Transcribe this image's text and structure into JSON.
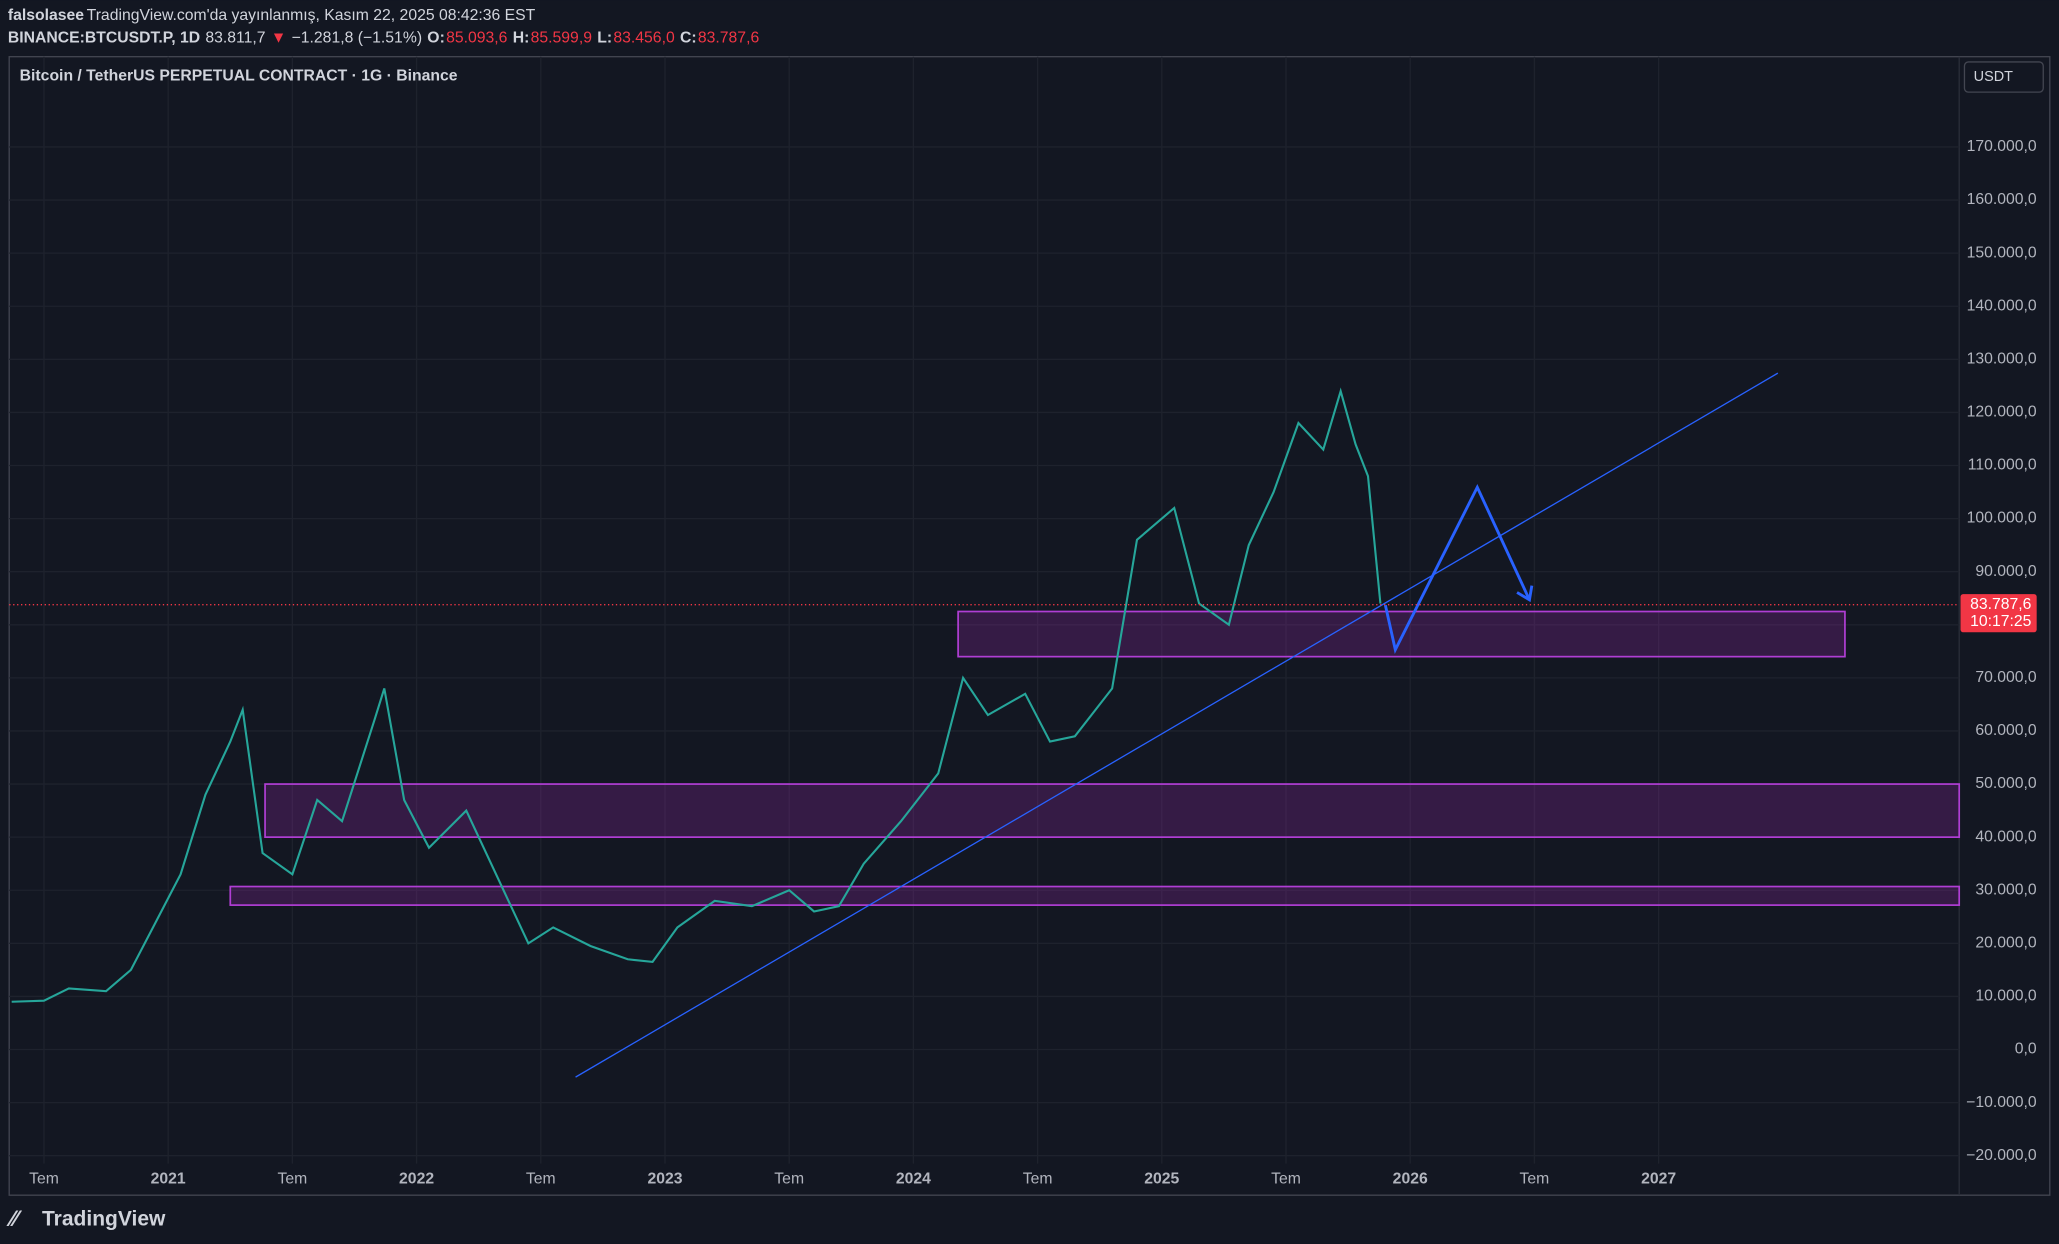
{
  "header": {
    "author": "falsolasee",
    "published": "TradingView.com'da yayınlanmış, Kasım 22, 2025 08:42:36 EST",
    "symbol": "BINANCE:BTCUSDT.P, 1D",
    "price": "83.811,7",
    "arrow": "▼",
    "change": "−1.281,8 (−1.51%)",
    "o_label": "O:",
    "o": "85.093,6",
    "h_label": "H:",
    "h": "85.599,9",
    "l_label": "L:",
    "l": "83.456,0",
    "c_label": "C:",
    "c": "83.787,6"
  },
  "legend": "Bitcoin / TetherUS PERPETUAL CONTRACT · 1G · Binance",
  "currency": "USDT",
  "brand": "TradingView",
  "chart_data": {
    "type": "line",
    "x": [
      2020.37,
      2020.5,
      2020.6,
      2020.75,
      2020.85,
      2020.95,
      2021.05,
      2021.15,
      2021.25,
      2021.3,
      2021.38,
      2021.5,
      2021.6,
      2021.7,
      2021.83,
      2021.87,
      2021.95,
      2022.05,
      2022.2,
      2022.35,
      2022.45,
      2022.55,
      2022.7,
      2022.85,
      2022.95,
      2023.05,
      2023.2,
      2023.35,
      2023.5,
      2023.6,
      2023.7,
      2023.8,
      2023.95,
      2024.1,
      2024.2,
      2024.3,
      2024.45,
      2024.55,
      2024.65,
      2024.8,
      2024.9,
      2024.95,
      2025.05,
      2025.15,
      2025.27,
      2025.35,
      2025.45,
      2025.55,
      2025.65,
      2025.72,
      2025.78,
      2025.83,
      2025.88
    ],
    "series": [
      {
        "name": "BTCUSDT.P",
        "color": "#26a69a",
        "values": [
          9000,
          9200,
          11500,
          11000,
          15000,
          24000,
          33000,
          48000,
          58000,
          64000,
          37000,
          33000,
          47000,
          43000,
          62000,
          68000,
          47000,
          38000,
          45000,
          30000,
          20000,
          23000,
          19500,
          17000,
          16500,
          23000,
          28000,
          27000,
          30000,
          26000,
          27000,
          35000,
          43000,
          52000,
          70000,
          63000,
          67000,
          58000,
          59000,
          68000,
          96000,
          98000,
          102000,
          84000,
          80000,
          95000,
          105000,
          118000,
          113000,
          124000,
          114000,
          108000,
          84000
        ]
      }
    ],
    "last_price": {
      "value": 83787.6,
      "label": "83.787,6"
    },
    "countdown": "10:17:25",
    "zones": [
      {
        "x": [
          2024.18,
          2027.75
        ],
        "y": [
          74000,
          82500
        ]
      },
      {
        "x": [
          2021.39,
          2028.21
        ],
        "y": [
          40000,
          50000
        ]
      },
      {
        "x": [
          2021.25,
          2028.21
        ],
        "y": [
          27200,
          30700
        ]
      }
    ],
    "trendline": {
      "x": [
        2022.64,
        2027.48
      ],
      "y": [
        -5200,
        127400
      ]
    },
    "projection": {
      "x": [
        2025.9,
        2025.94,
        2026.27,
        2026.48
      ],
      "y": [
        83700,
        75300,
        105900,
        84700
      ]
    },
    "xlim": [
      2020.36,
      2028.21
    ],
    "ylim": [
      -21500,
      187000
    ],
    "xticks": [
      {
        "value": 2020.5,
        "label": "Tem"
      },
      2021,
      {
        "value": 2021.5,
        "label": "Tem"
      },
      2022,
      {
        "value": 2022.5,
        "label": "Tem"
      },
      2023,
      {
        "value": 2023.5,
        "label": "Tem"
      },
      2024,
      {
        "value": 2024.5,
        "label": "Tem"
      },
      2025,
      {
        "value": 2025.5,
        "label": "Tem"
      },
      2026,
      {
        "value": 2026.5,
        "label": "Tem"
      },
      2027
    ],
    "yticks": [
      {
        "value": -20000,
        "label": "−20.000,0"
      },
      {
        "value": -10000,
        "label": "−10.000,0"
      },
      {
        "value": 0,
        "label": "0,0"
      },
      {
        "value": 10000,
        "label": "10.000,0"
      },
      {
        "value": 20000,
        "label": "20.000,0"
      },
      {
        "value": 30000,
        "label": "30.000,0"
      },
      {
        "value": 40000,
        "label": "40.000,0"
      },
      {
        "value": 50000,
        "label": "50.000,0"
      },
      {
        "value": 60000,
        "label": "60.000,0"
      },
      {
        "value": 70000,
        "label": "70.000,0"
      },
      {
        "value": 80000,
        "label": "80.000,0"
      },
      {
        "value": 90000,
        "label": "90.000,0"
      },
      {
        "value": 100000,
        "label": "100.000,0"
      },
      {
        "value": 110000,
        "label": "110.000,0"
      },
      {
        "value": 120000,
        "label": "120.000,0"
      },
      {
        "value": 130000,
        "label": "130.000,0"
      },
      {
        "value": 140000,
        "label": "140.000,0"
      },
      {
        "value": 150000,
        "label": "150.000,0"
      },
      {
        "value": 160000,
        "label": "160.000,0"
      },
      {
        "value": 170000,
        "label": "170.000,0"
      }
    ],
    "grid": true
  }
}
